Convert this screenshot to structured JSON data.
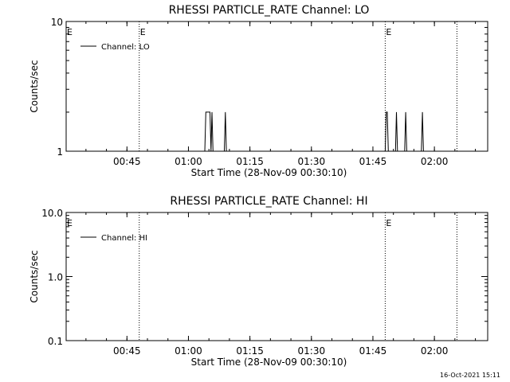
{
  "footer": {
    "timestamp": "16-Oct-2021 15:11"
  },
  "chart_data": [
    {
      "type": "line",
      "title": "RHESSI PARTICLE_RATE Channel: LO",
      "xlabel": "Start Time (28-Nov-09 00:30:10)",
      "ylabel": "Counts/sec",
      "yscale": "log",
      "xlim": [
        "00:30:10",
        "02:13:00"
      ],
      "ylim": [
        1,
        10
      ],
      "x_ticks": [
        "00:45",
        "01:00",
        "01:15",
        "01:30",
        "01:45",
        "02:00"
      ],
      "y_ticks": [
        "1",
        "10"
      ],
      "legend": {
        "label": "Channel: LO",
        "position": "top-left"
      },
      "event_lines": [
        {
          "time": "00:48:00",
          "label": "E"
        },
        {
          "time": "01:48:00",
          "label": "E"
        },
        {
          "time": "02:05:30",
          "label": ""
        }
      ],
      "x_min": [
        "00:30:10",
        "01:04:15",
        "01:05:15",
        "01:05:20",
        "01:06:00",
        "01:08:45",
        "01:09:00",
        "01:48:00",
        "01:48:15",
        "01:48:30",
        "01:50:30",
        "01:51:00",
        "01:52:45",
        "01:53:15",
        "01:56:50",
        "01:57:05",
        "02:13:00"
      ],
      "series": [
        {
          "name": "Channel: LO",
          "x": [
            "00:30:10",
            "01:04:00",
            "01:04:15",
            "01:05:15",
            "01:05:30",
            "01:05:45",
            "01:06:00",
            "01:08:45",
            "01:09:00",
            "01:09:15",
            "01:48:00",
            "01:48:15",
            "01:48:30",
            "01:48:45",
            "01:50:30",
            "01:50:45",
            "01:51:00",
            "01:52:45",
            "01:53:00",
            "01:53:15",
            "01:56:50",
            "01:57:05",
            "01:57:20",
            "02:13:00"
          ],
          "values": [
            1,
            1,
            2,
            2,
            1,
            2,
            1,
            1,
            2,
            1,
            1,
            2,
            2,
            1,
            1,
            2,
            1,
            1,
            2,
            1,
            1,
            2,
            1,
            1
          ]
        }
      ]
    },
    {
      "type": "line",
      "title": "RHESSI PARTICLE_RATE Channel: HI",
      "xlabel": "Start Time (28-Nov-09 00:30:10)",
      "ylabel": "Counts/sec",
      "yscale": "log",
      "xlim": [
        "00:30:10",
        "02:13:00"
      ],
      "ylim": [
        0.1,
        10
      ],
      "x_ticks": [
        "00:45",
        "01:00",
        "01:15",
        "01:30",
        "01:45",
        "02:00"
      ],
      "y_ticks": [
        "0.1",
        "1.0",
        "10.0"
      ],
      "legend": {
        "label": "Channel: HI",
        "position": "top-left"
      },
      "event_lines": [
        {
          "time": "00:48:00",
          "label": ""
        },
        {
          "time": "01:48:00",
          "label": "E"
        },
        {
          "time": "02:05:30",
          "label": ""
        }
      ],
      "series": [
        {
          "name": "Channel: HI",
          "x": [],
          "values": []
        }
      ]
    }
  ]
}
